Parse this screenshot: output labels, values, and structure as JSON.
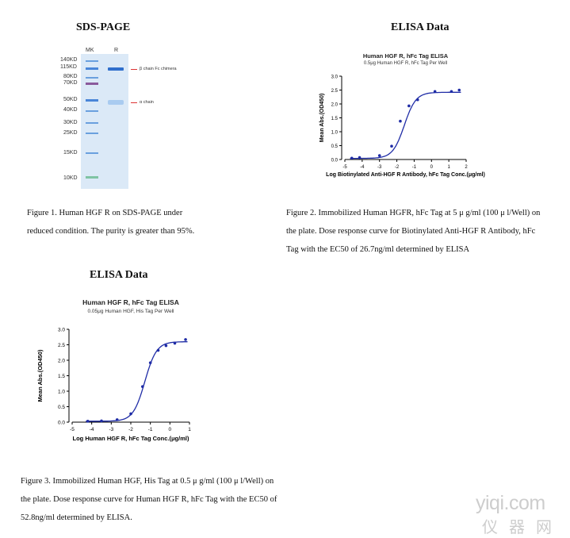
{
  "headings": {
    "sds": "SDS-PAGE",
    "elisa1": "ELISA Data",
    "elisa2": "ELISA Data"
  },
  "gel": {
    "lane_mk": "MK",
    "lane_r": "R",
    "markers": [
      "140KD",
      "115KD",
      "80KD",
      "70KD",
      "50KD",
      "40KD",
      "30KD",
      "25KD",
      "15KD",
      "10KD"
    ],
    "annotation_beta": "β chain Fc chimera",
    "annotation_alpha": "α chain",
    "background_color": "#dbe9f7",
    "band_color": "#4a86d8"
  },
  "captions": {
    "fig1_line1": "Figure 1. Human HGF R on SDS-PAGE under",
    "fig1_line2": "reduced condition. The purity is greater than 95%.",
    "fig2_line1": "Figure 2. Immobilized Human HGFR, hFc Tag at 5 μ g/ml (100 μ l/Well) on",
    "fig2_line2": "the plate. Dose response curve for Biotinylated Anti-HGF R Antibody, hFc",
    "fig2_line3": "Tag with the EC50 of 26.7ng/ml determined by ELISA",
    "fig3_line1": "Figure 3. Immobilized Human HGF, His Tag at 0.5 μ g/ml (100 μ l/Well) on",
    "fig3_line2": "the plate. Dose response curve for Human HGF R, hFc Tag with the EC50 of",
    "fig3_line3": "52.8ng/ml determined by ELISA."
  },
  "watermark": {
    "line1": "yiqi.com",
    "line2": "仪器网"
  },
  "chart_data": [
    {
      "type": "scatter",
      "title": "Human HGF R, hFc Tag ELISA",
      "subtitle": "0.5μg Human HGF R, hFc Tag Per Well",
      "xlabel": "Log Biotinylated Anti-HGF R Antibody, hFc Tag Conc.(μg/ml)",
      "ylabel": "Mean Abs.(OD450)",
      "xlim": [
        -5,
        2
      ],
      "ylim": [
        0,
        3.0
      ],
      "xticks": [
        -5,
        -4,
        -3,
        -2,
        -1,
        0,
        1,
        2
      ],
      "yticks": [
        0.0,
        0.5,
        1.0,
        1.5,
        2.0,
        2.5,
        3.0
      ],
      "x": [
        -4.6,
        -4.15,
        -3.0,
        -2.3,
        -1.8,
        -1.3,
        -0.8,
        0.2,
        1.15,
        1.6
      ],
      "y": [
        0.05,
        0.07,
        0.14,
        0.48,
        1.38,
        1.93,
        2.15,
        2.45,
        2.45,
        2.5
      ],
      "fit": {
        "bottom": 0.04,
        "top": 2.42,
        "logEC50": -1.57,
        "hill": 1.3
      },
      "color": "#1f2ca6",
      "grid": false
    },
    {
      "type": "scatter",
      "title": "Human HGF R, hFc Tag ELISA",
      "subtitle": "0.05μg Human HGF, His Tag Per Well",
      "xlabel": "Log Human HGF R, hFc Tag Conc.(μg/ml)",
      "ylabel": "Mean Abs.(OD450)",
      "xlim": [
        -5,
        1
      ],
      "ylim": [
        0,
        3.0
      ],
      "xticks": [
        -5,
        -4,
        -3,
        -2,
        -1,
        0,
        1
      ],
      "yticks": [
        0.0,
        0.5,
        1.0,
        1.5,
        2.0,
        2.5,
        3.0
      ],
      "x": [
        -4.2,
        -3.5,
        -2.7,
        -2.0,
        -1.4,
        -1.0,
        -0.6,
        -0.2,
        0.25,
        0.8
      ],
      "y": [
        0.03,
        0.04,
        0.08,
        0.27,
        1.15,
        1.92,
        2.32,
        2.47,
        2.55,
        2.67
      ],
      "fit": {
        "bottom": 0.03,
        "top": 2.6,
        "logEC50": -1.28,
        "hill": 1.45
      },
      "color": "#1f2ca6",
      "grid": false
    }
  ]
}
